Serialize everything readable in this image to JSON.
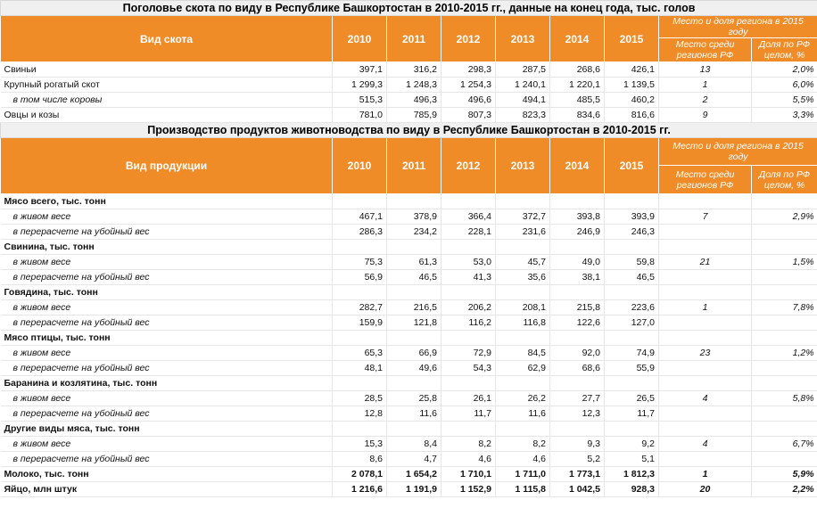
{
  "table1": {
    "title": "Поголовье скота по виду в Республике Башкортостан в 2010-2015 гг., данные на конец года, тыс. голов",
    "col_label": "Вид скота",
    "years": [
      "2010",
      "2011",
      "2012",
      "2013",
      "2014",
      "2015"
    ],
    "region_header": "Место и доля региона в 2015 году",
    "place_header": "Место среди регионов РФ",
    "share_header": "Доля по РФ целом, %",
    "rows": [
      {
        "label": "Свиньи",
        "style": "plain",
        "values": [
          "397,1",
          "316,2",
          "298,3",
          "287,5",
          "268,6",
          "426,1"
        ],
        "place": "13",
        "share": "2,0%"
      },
      {
        "label": "Крупный рогатый скот",
        "style": "plain",
        "values": [
          "1 299,3",
          "1 248,3",
          "1 254,3",
          "1 240,1",
          "1 220,1",
          "1 139,5"
        ],
        "place": "1",
        "share": "6,0%"
      },
      {
        "label": "в том числе коровы",
        "style": "indent",
        "values": [
          "515,3",
          "496,3",
          "496,6",
          "494,1",
          "485,5",
          "460,2"
        ],
        "place": "2",
        "share": "5,5%"
      },
      {
        "label": "Овцы и козы",
        "style": "plain",
        "values": [
          "781,0",
          "785,9",
          "807,3",
          "823,3",
          "834,6",
          "816,6"
        ],
        "place": "9",
        "share": "3,3%"
      }
    ]
  },
  "table2": {
    "title": "Производство продуктов животноводства по виду в Республике Башкортостан в 2010-2015 гг.",
    "col_label": "Вид продукции",
    "years": [
      "2010",
      "2011",
      "2012",
      "2013",
      "2014",
      "2015"
    ],
    "region_header": "Место и доля региона в 2015 году",
    "place_header": "Место среди регионов РФ",
    "share_header": "Доля по РФ целом, %",
    "rows": [
      {
        "label": "Мясо всего, тыс. тонн",
        "style": "bold",
        "values": [
          "",
          "",
          "",
          "",
          "",
          ""
        ],
        "place": "",
        "share": ""
      },
      {
        "label": "в живом весе",
        "style": "indent",
        "values": [
          "467,1",
          "378,9",
          "366,4",
          "372,7",
          "393,8",
          "393,9"
        ],
        "place": "7",
        "share": "2,9%"
      },
      {
        "label": "в перерасчете на убойный вес",
        "style": "indent",
        "values": [
          "286,3",
          "234,2",
          "228,1",
          "231,6",
          "246,9",
          "246,3"
        ],
        "place": "",
        "share": ""
      },
      {
        "label": "Свинина, тыс. тонн",
        "style": "bold",
        "values": [
          "",
          "",
          "",
          "",
          "",
          ""
        ],
        "place": "",
        "share": ""
      },
      {
        "label": "в живом весе",
        "style": "indent",
        "values": [
          "75,3",
          "61,3",
          "53,0",
          "45,7",
          "49,0",
          "59,8"
        ],
        "place": "21",
        "share": "1,5%"
      },
      {
        "label": "в перерасчете на убойный вес",
        "style": "indent",
        "values": [
          "56,9",
          "46,5",
          "41,3",
          "35,6",
          "38,1",
          "46,5"
        ],
        "place": "",
        "share": ""
      },
      {
        "label": "Говядина, тыс. тонн",
        "style": "bold",
        "values": [
          "",
          "",
          "",
          "",
          "",
          ""
        ],
        "place": "",
        "share": ""
      },
      {
        "label": "в живом весе",
        "style": "indent",
        "values": [
          "282,7",
          "216,5",
          "206,2",
          "208,1",
          "215,8",
          "223,6"
        ],
        "place": "1",
        "share": "7,8%"
      },
      {
        "label": "в перерасчете на убойный вес",
        "style": "indent",
        "values": [
          "159,9",
          "121,8",
          "116,2",
          "116,8",
          "122,6",
          "127,0"
        ],
        "place": "",
        "share": ""
      },
      {
        "label": "Мясо птицы, тыс. тонн",
        "style": "bold",
        "values": [
          "",
          "",
          "",
          "",
          "",
          ""
        ],
        "place": "",
        "share": ""
      },
      {
        "label": "в живом весе",
        "style": "indent",
        "values": [
          "65,3",
          "66,9",
          "72,9",
          "84,5",
          "92,0",
          "74,9"
        ],
        "place": "23",
        "share": "1,2%"
      },
      {
        "label": "в перерасчете на убойный вес",
        "style": "indent",
        "values": [
          "48,1",
          "49,6",
          "54,3",
          "62,9",
          "68,6",
          "55,9"
        ],
        "place": "",
        "share": ""
      },
      {
        "label": "Баранина  и козлятина, тыс. тонн",
        "style": "bold",
        "values": [
          "",
          "",
          "",
          "",
          "",
          ""
        ],
        "place": "",
        "share": ""
      },
      {
        "label": "в живом весе",
        "style": "indent",
        "values": [
          "28,5",
          "25,8",
          "26,1",
          "26,2",
          "27,7",
          "26,5"
        ],
        "place": "4",
        "share": "5,8%"
      },
      {
        "label": "в перерасчете на убойный вес",
        "style": "indent",
        "values": [
          "12,8",
          "11,6",
          "11,7",
          "11,6",
          "12,3",
          "11,7"
        ],
        "place": "",
        "share": ""
      },
      {
        "label": "Другие виды мяса, тыс. тонн",
        "style": "bold",
        "values": [
          "",
          "",
          "",
          "",
          "",
          ""
        ],
        "place": "",
        "share": ""
      },
      {
        "label": "в живом весе",
        "style": "indent",
        "values": [
          "15,3",
          "8,4",
          "8,2",
          "8,2",
          "9,3",
          "9,2"
        ],
        "place": "4",
        "share": "6,7%"
      },
      {
        "label": "в перерасчете на убойный вес",
        "style": "indent",
        "values": [
          "8,6",
          "4,7",
          "4,6",
          "4,6",
          "5,2",
          "5,1"
        ],
        "place": "",
        "share": ""
      },
      {
        "label": "Молоко, тыс. тонн",
        "style": "bold",
        "values": [
          "2 078,1",
          "1 654,2",
          "1 710,1",
          "1 711,0",
          "1 773,1",
          "1 812,3"
        ],
        "place": "1",
        "share": "5,9%"
      },
      {
        "label": "Яйцо, млн штук",
        "style": "bold",
        "values": [
          "1 216,6",
          "1 191,9",
          "1 152,9",
          "1 115,8",
          "1 042,5",
          "928,3"
        ],
        "place": "20",
        "share": "2,2%"
      }
    ]
  }
}
